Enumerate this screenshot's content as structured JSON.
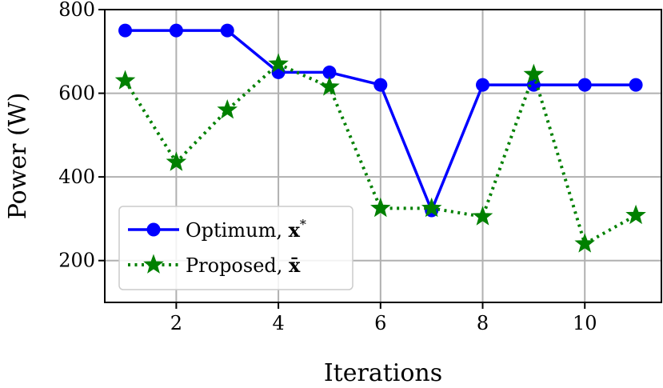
{
  "chart_data": {
    "type": "line",
    "xlabel": "Iterations",
    "ylabel": "Power (W)",
    "xlim": [
      0.6,
      11.5
    ],
    "ylim": [
      100,
      800
    ],
    "xticks": [
      2,
      4,
      6,
      8,
      10
    ],
    "xtick_labels": [
      "2",
      "4",
      "6",
      "8",
      "10"
    ],
    "yticks": [
      200,
      400,
      600,
      800
    ],
    "ytick_labels": [
      "200",
      "400",
      "600",
      "800"
    ],
    "grid": true,
    "legend": "lower-left",
    "series": [
      {
        "name": "Optimum, x*",
        "name_text": "Optimum, ",
        "name_symbol": "x",
        "name_sup": "*",
        "color": "#0000ff",
        "line_style": "solid",
        "marker": "circle",
        "x": [
          1,
          2,
          3,
          4,
          5,
          6,
          7,
          8,
          9,
          10,
          11
        ],
        "values": [
          750,
          750,
          750,
          650,
          650,
          620,
          320,
          620,
          620,
          620,
          620
        ]
      },
      {
        "name": "Proposed, x̄",
        "name_text": "Proposed, ",
        "name_symbol": "x̄",
        "name_sup": "",
        "color": "#008000",
        "line_style": "dotted",
        "marker": "star",
        "x": [
          1,
          2,
          3,
          4,
          5,
          6,
          7,
          8,
          9,
          10,
          11
        ],
        "values": [
          630,
          435,
          560,
          670,
          615,
          325,
          325,
          305,
          645,
          240,
          308
        ]
      }
    ]
  }
}
